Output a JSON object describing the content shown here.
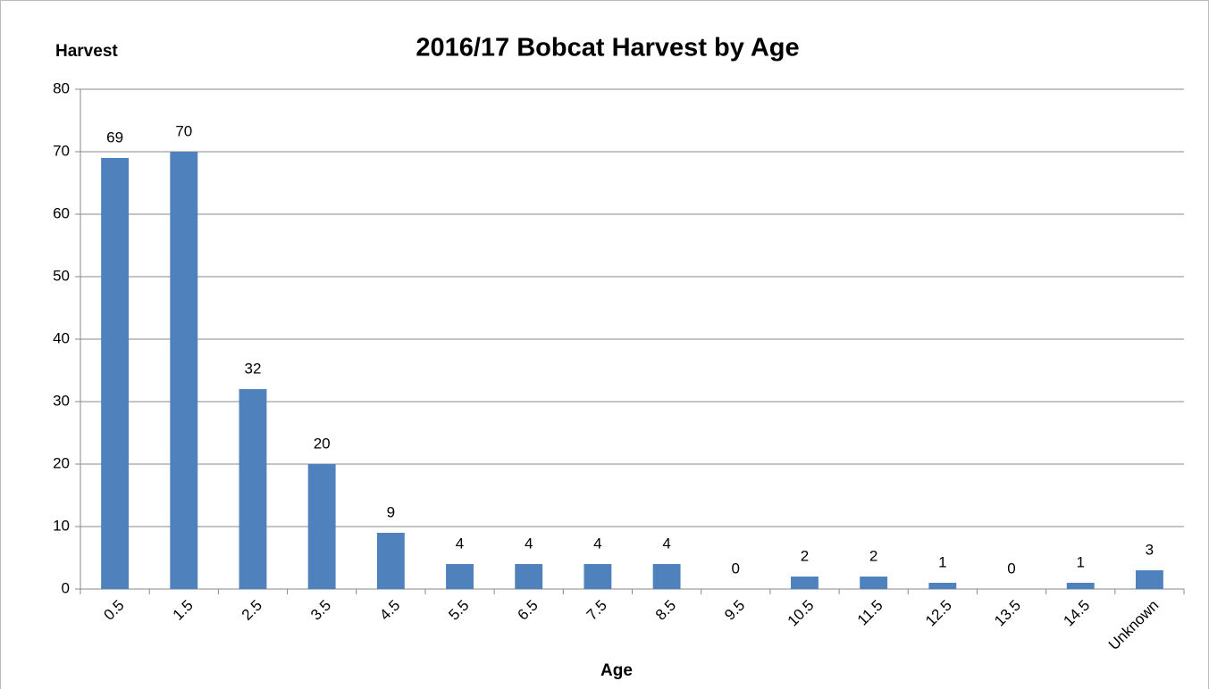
{
  "chart_data": {
    "type": "bar",
    "title": "2016/17 Bobcat Harvest by Age",
    "y_label": "Harvest",
    "x_label": "Age",
    "categories": [
      "0.5",
      "1.5",
      "2.5",
      "3.5",
      "4.5",
      "5.5",
      "6.5",
      "7.5",
      "8.5",
      "9.5",
      "10.5",
      "11.5",
      "12.5",
      "13.5",
      "14.5",
      "Unknown"
    ],
    "values": [
      69,
      70,
      32,
      20,
      9,
      4,
      4,
      4,
      4,
      0,
      2,
      2,
      1,
      0,
      1,
      3
    ],
    "color": "#4f81bd",
    "ylim": [
      0,
      80
    ],
    "yticks": [
      0,
      10,
      20,
      30,
      40,
      50,
      60,
      70,
      80
    ],
    "grid": true,
    "data_labels": true
  }
}
